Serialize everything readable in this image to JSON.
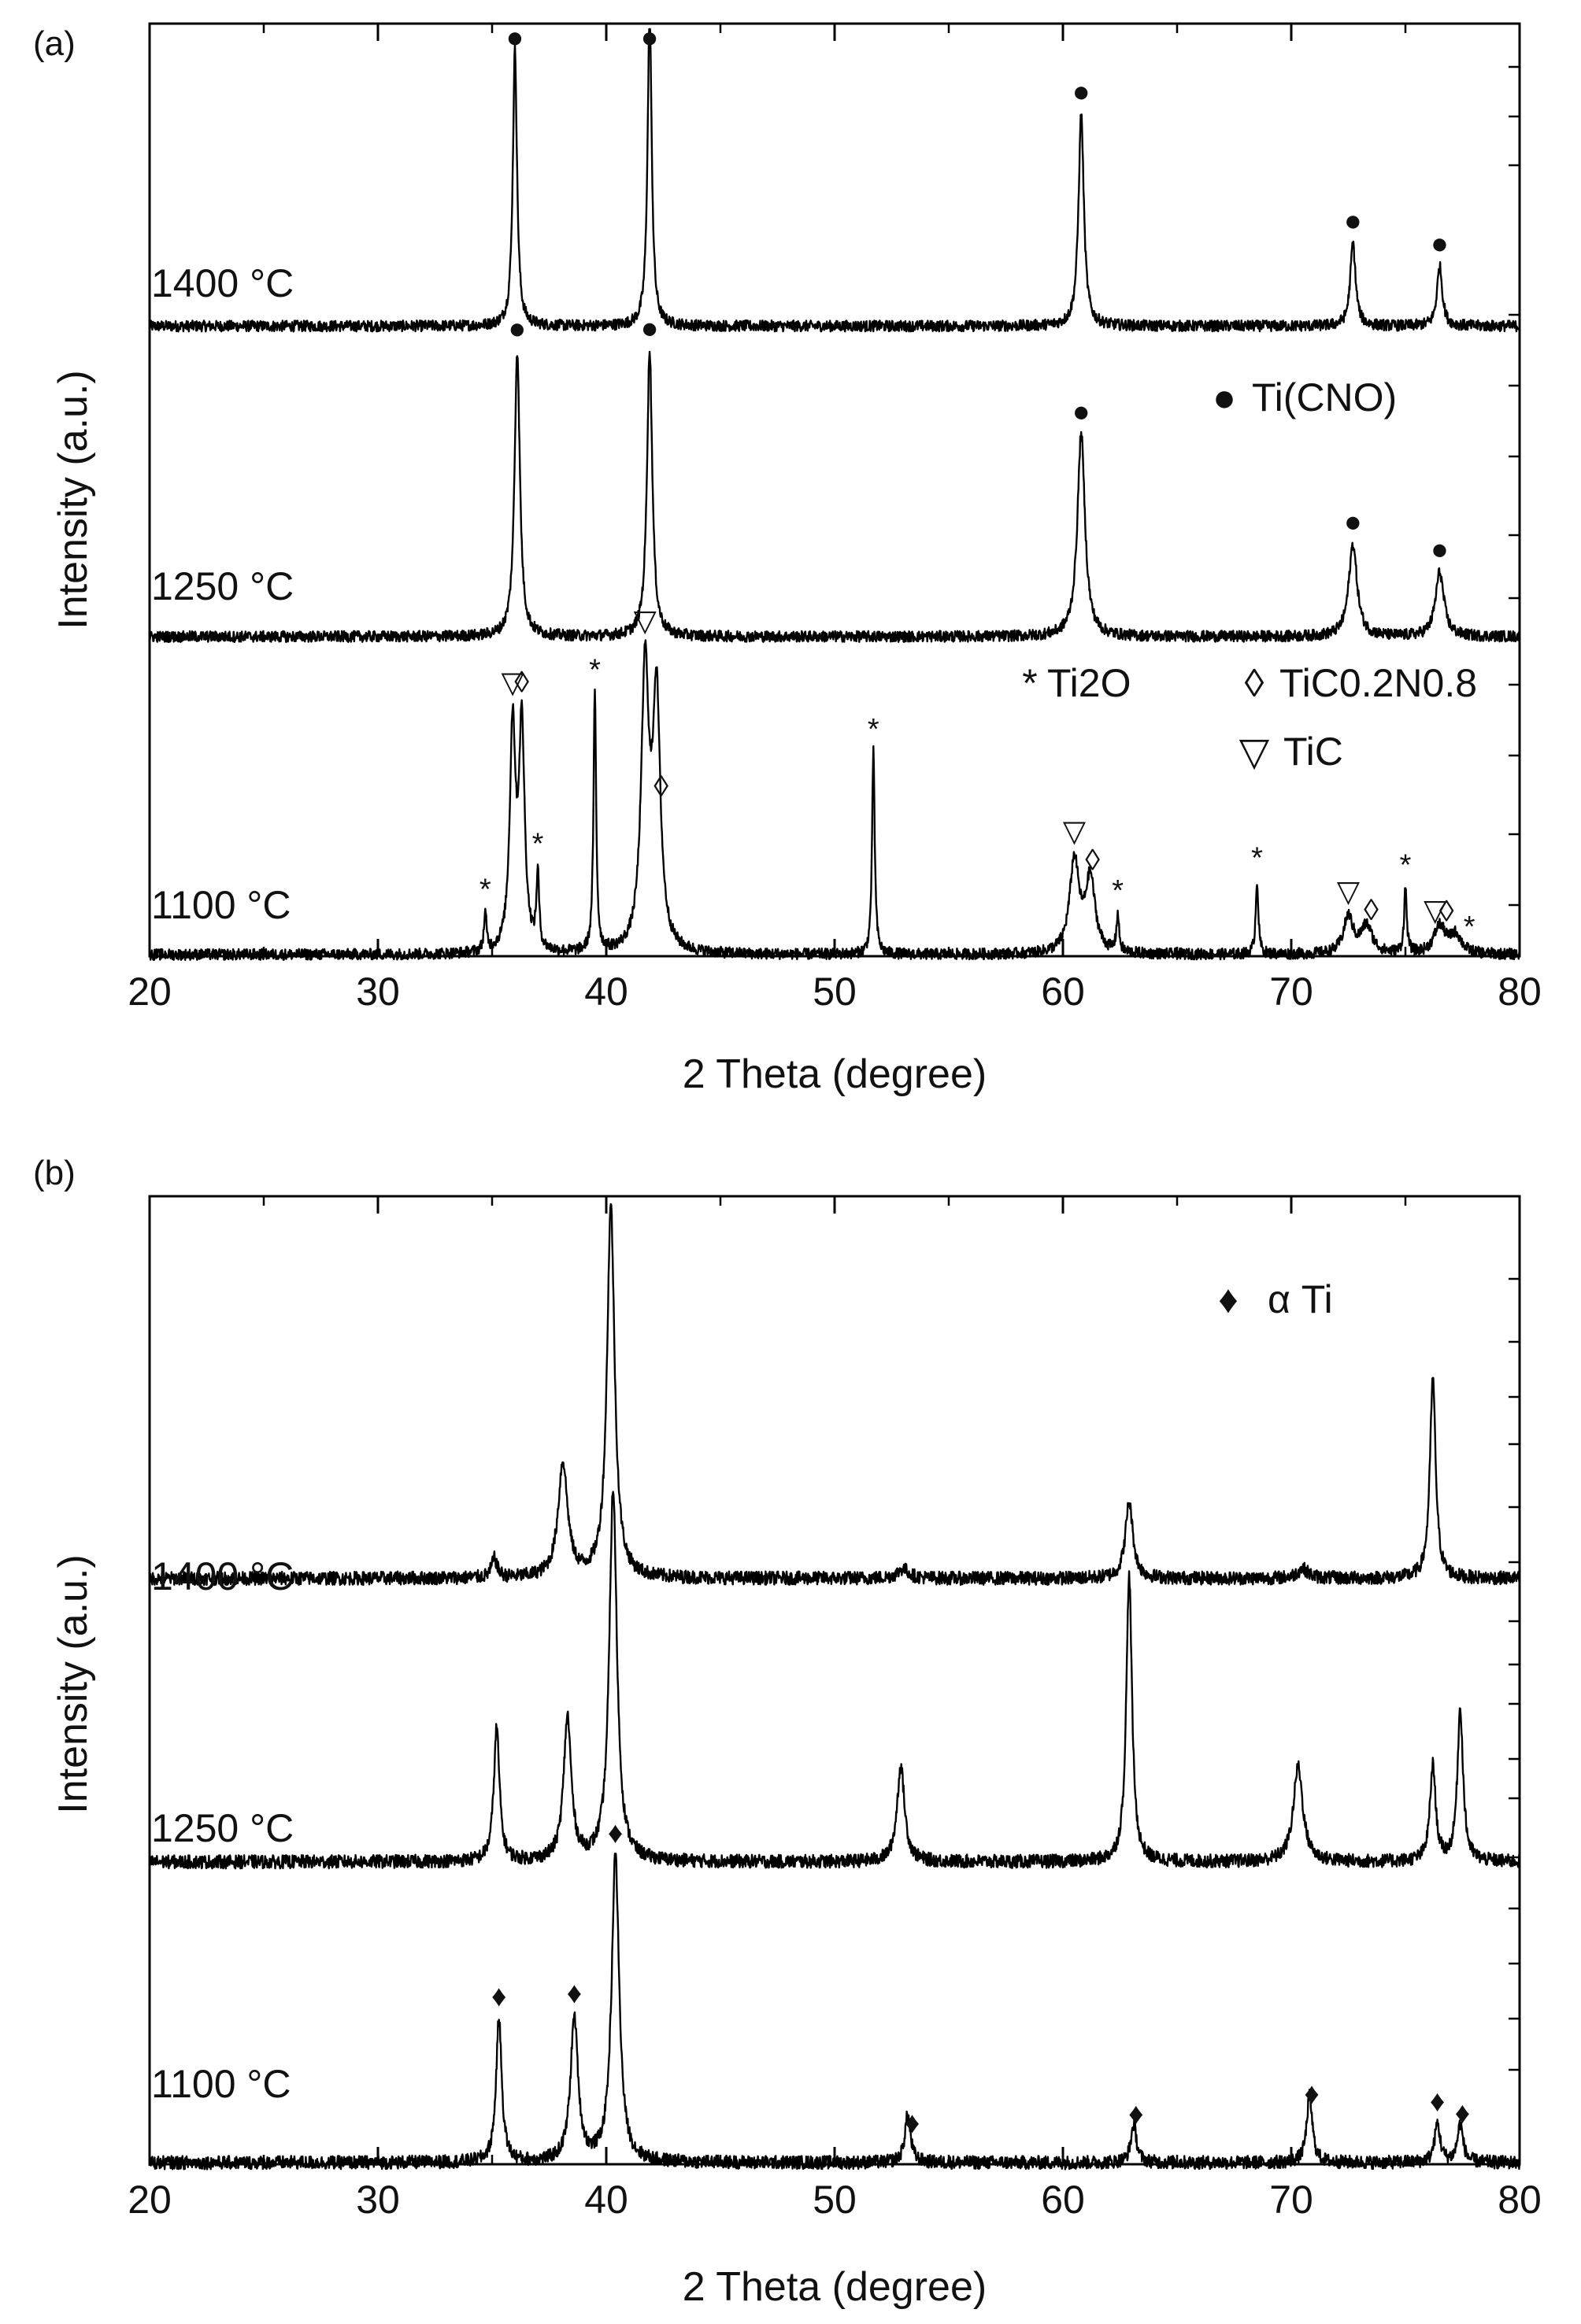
{
  "figure": {
    "panels": [
      "(a)",
      "(b)"
    ]
  },
  "chart_data": [
    {
      "type": "line",
      "panel_label": "(a)",
      "xlabel": "2 Theta (degree)",
      "ylabel": "Intensity (a.u.)",
      "xlim": [
        20,
        80
      ],
      "ylim": [
        0,
        1
      ],
      "xticks": [
        20,
        30,
        40,
        50,
        60,
        70,
        80
      ],
      "x_tick_labels": [
        "20",
        "30",
        "40",
        "50",
        "60",
        "70",
        "80"
      ],
      "baseline_noise": 0.006,
      "series": [
        {
          "name": "1400 °C",
          "label": "1400 °C",
          "baseline": 0.682,
          "peaks": [
            [
              36.0,
              0.3,
              0.11
            ],
            [
              41.9,
              0.34,
              0.11
            ],
            [
              60.8,
              0.23,
              0.14
            ],
            [
              72.7,
              0.09,
              0.14
            ],
            [
              76.5,
              0.065,
              0.14
            ]
          ]
        },
        {
          "name": "1250 °C",
          "label": "1250 °C",
          "baseline": 0.345,
          "peaks": [
            [
              36.1,
              0.31,
              0.14
            ],
            [
              41.9,
              0.31,
              0.14
            ],
            [
              60.8,
              0.22,
              0.2
            ],
            [
              72.7,
              0.1,
              0.22
            ],
            [
              76.5,
              0.07,
              0.22
            ]
          ]
        },
        {
          "name": "1100 °C",
          "label": "1100 °C",
          "baseline": 0.0,
          "peaks": [
            [
              34.7,
              0.04,
              0.07
            ],
            [
              35.9,
              0.24,
              0.15
            ],
            [
              36.3,
              0.24,
              0.15
            ],
            [
              37.0,
              0.08,
              0.07
            ],
            [
              39.5,
              0.28,
              0.07
            ],
            [
              41.7,
              0.3,
              0.2
            ],
            [
              42.2,
              0.27,
              0.2
            ],
            [
              51.7,
              0.22,
              0.07
            ],
            [
              60.5,
              0.1,
              0.25
            ],
            [
              61.2,
              0.08,
              0.25
            ],
            [
              62.4,
              0.04,
              0.07
            ],
            [
              68.5,
              0.08,
              0.07
            ],
            [
              72.5,
              0.04,
              0.25
            ],
            [
              73.3,
              0.03,
              0.3
            ],
            [
              75.0,
              0.07,
              0.07
            ],
            [
              76.5,
              0.03,
              0.3
            ],
            [
              77.2,
              0.02,
              0.3
            ]
          ]
        }
      ],
      "phase_legend": [
        {
          "symbol": "●",
          "name": "Ti(CNO)"
        },
        {
          "symbol": "*",
          "name": "Ti2O"
        },
        {
          "symbol": "◊",
          "name": "TiC0.2N0.8"
        },
        {
          "symbol": "▽",
          "name": "TiC"
        }
      ],
      "peak_markers": [
        {
          "symbol": "●",
          "x": 36.0,
          "series": 0
        },
        {
          "symbol": "●",
          "x": 41.9,
          "series": 0
        },
        {
          "symbol": "●",
          "x": 60.8,
          "series": 0
        },
        {
          "symbol": "●",
          "x": 72.7,
          "series": 0
        },
        {
          "symbol": "●",
          "x": 76.5,
          "series": 0
        },
        {
          "symbol": "●",
          "x": 36.1,
          "series": 1
        },
        {
          "symbol": "●",
          "x": 41.9,
          "series": 1
        },
        {
          "symbol": "●",
          "x": 60.8,
          "series": 1
        },
        {
          "symbol": "●",
          "x": 72.7,
          "series": 1
        },
        {
          "symbol": "●",
          "x": 76.5,
          "series": 1
        },
        {
          "symbol": "*",
          "x": 34.7,
          "series": 2
        },
        {
          "symbol": "▽",
          "x": 35.9,
          "series": 2
        },
        {
          "symbol": "◊",
          "x": 36.3,
          "series": 2
        },
        {
          "symbol": "*",
          "x": 37.0,
          "series": 2
        },
        {
          "symbol": "*",
          "x": 39.5,
          "series": 2
        },
        {
          "symbol": "▽",
          "x": 41.7,
          "series": 2
        },
        {
          "symbol": "◊",
          "x": 42.4,
          "series": 2
        },
        {
          "symbol": "*",
          "x": 51.7,
          "series": 2
        },
        {
          "symbol": "▽",
          "x": 60.5,
          "series": 2
        },
        {
          "symbol": "◊",
          "x": 61.3,
          "series": 2
        },
        {
          "symbol": "*",
          "x": 62.4,
          "series": 2
        },
        {
          "symbol": "*",
          "x": 68.5,
          "series": 2
        },
        {
          "symbol": "▽",
          "x": 72.5,
          "series": 2
        },
        {
          "symbol": "◊",
          "x": 73.5,
          "series": 2
        },
        {
          "symbol": "*",
          "x": 75.0,
          "series": 2
        },
        {
          "symbol": "▽",
          "x": 76.3,
          "series": 2
        },
        {
          "symbol": "◊",
          "x": 76.8,
          "series": 2
        },
        {
          "symbol": "*",
          "x": 77.8,
          "series": 2
        }
      ]
    },
    {
      "type": "line",
      "panel_label": "(b)",
      "xlabel": "2 Theta (degree)",
      "ylabel": "Intensity (a.u.)",
      "xlim": [
        20,
        80
      ],
      "ylim": [
        0,
        1
      ],
      "xticks": [
        20,
        30,
        40,
        50,
        60,
        70,
        80
      ],
      "x_tick_labels": [
        "20",
        "30",
        "40",
        "50",
        "60",
        "70",
        "80"
      ],
      "baseline_noise": 0.007,
      "series": [
        {
          "name": "1400 °C",
          "label": "1400 °C",
          "baseline": 0.612,
          "peaks": [
            [
              35.1,
              0.02,
              0.15
            ],
            [
              38.1,
              0.12,
              0.25
            ],
            [
              40.2,
              0.39,
              0.2
            ],
            [
              53.0,
              0.01,
              0.3
            ],
            [
              62.9,
              0.08,
              0.2
            ],
            [
              70.5,
              0.01,
              0.3
            ],
            [
              76.2,
              0.21,
              0.15
            ]
          ]
        },
        {
          "name": "1250 °C",
          "label": "1250 °C",
          "baseline": 0.315,
          "peaks": [
            [
              35.2,
              0.14,
              0.15
            ],
            [
              38.3,
              0.15,
              0.2
            ],
            [
              40.3,
              0.39,
              0.2
            ],
            [
              52.9,
              0.1,
              0.2
            ],
            [
              62.9,
              0.3,
              0.15
            ],
            [
              70.3,
              0.1,
              0.25
            ],
            [
              76.2,
              0.1,
              0.15
            ],
            [
              77.4,
              0.16,
              0.15
            ]
          ]
        },
        {
          "name": "1100 °C",
          "label": "1100 °C",
          "baseline": 0.0,
          "peaks": [
            [
              35.3,
              0.15,
              0.15
            ],
            [
              38.6,
              0.15,
              0.2
            ],
            [
              40.4,
              0.32,
              0.2
            ],
            [
              53.2,
              0.05,
              0.15
            ],
            [
              63.1,
              0.04,
              0.15
            ],
            [
              70.8,
              0.07,
              0.15
            ],
            [
              76.4,
              0.04,
              0.15
            ],
            [
              77.4,
              0.04,
              0.15
            ]
          ]
        }
      ],
      "phase_legend": [
        {
          "symbol": "♦",
          "name": "α Ti"
        }
      ],
      "peak_markers": [
        {
          "symbol": "♦",
          "x": 35.3,
          "series": 2
        },
        {
          "symbol": "♦",
          "x": 38.6,
          "series": 2
        },
        {
          "symbol": "♦",
          "x": 40.4,
          "series": 2
        },
        {
          "symbol": "♦",
          "x": 53.4,
          "series": 2
        },
        {
          "symbol": "♦",
          "x": 63.2,
          "series": 2
        },
        {
          "symbol": "♦",
          "x": 70.9,
          "series": 2
        },
        {
          "symbol": "♦",
          "x": 76.4,
          "series": 2
        },
        {
          "symbol": "♦",
          "x": 77.5,
          "series": 2
        }
      ]
    }
  ]
}
